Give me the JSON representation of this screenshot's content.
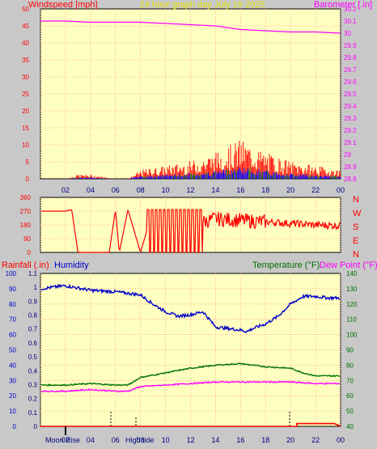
{
  "title": "24 hour graph day   July 19 2025",
  "panel1": {
    "left_label": "Windspeed [mph]",
    "right_label": "Barometer [.in]",
    "left_ticks": [
      "50",
      "45",
      "40",
      "35",
      "30",
      "25",
      "20",
      "15",
      "10",
      "5",
      "0"
    ],
    "right_ticks": [
      "30.2",
      "30.1",
      "30",
      "29.9",
      "29.8",
      "29.7",
      "29.6",
      "29.5",
      "29.4",
      "29.3",
      "29.2",
      "29.1",
      "29",
      "28.9",
      "28.8"
    ]
  },
  "panel2": {
    "left_ticks": [
      "360",
      "270",
      "180",
      "90",
      "0"
    ],
    "compass": [
      "N",
      "W",
      "S",
      "E",
      "N"
    ]
  },
  "panel3": {
    "left_label_rain": "Rainfall (.in)",
    "left_label_hum": "Humidity",
    "right_label_temp": "Temperature (°F)",
    "right_label_dew": "Dew Point (°F)",
    "rain_ticks": [
      "1.1",
      "1",
      "0.9",
      "0.8",
      "0.7",
      "0.6",
      "0.5",
      "0.4",
      "0.3",
      "0.2",
      "0.1",
      "0"
    ],
    "hum_ticks": [
      "100",
      "90",
      "80",
      "70",
      "60",
      "50",
      "40",
      "30",
      "20",
      "10",
      "0"
    ],
    "temp_ticks": [
      "140",
      "130",
      "120",
      "110",
      "100",
      "90",
      "80",
      "70",
      "60",
      "50",
      "40"
    ],
    "moon_rise": "Moon Rise",
    "high_tide": "High tide"
  },
  "x_ticks": [
    "02",
    "04",
    "06",
    "08",
    "10",
    "12",
    "14",
    "16",
    "18",
    "20",
    "22",
    "00"
  ],
  "colors": {
    "windspeed": "#ff0000",
    "gust": "#ff0000",
    "avg_wind": "#0000ff",
    "wind_green": "#008000",
    "barometer": "#ff00ff",
    "direction": "#ff0000",
    "humidity": "#0000cc",
    "temperature": "#007000",
    "dewpoint": "#ff00ff",
    "rain": "#ff0000",
    "plot_bg": "#ffffc0",
    "grid": "#ff9999"
  },
  "chart_data": [
    {
      "type": "line",
      "title": "24 hour graph day   July 19 2025",
      "ylabel": "Windspeed [mph]",
      "y2label": "Barometer [.in]",
      "ylim": [
        0,
        50
      ],
      "y2lim": [
        28.8,
        30.2
      ],
      "x_hours": [
        0,
        2,
        4,
        6,
        8,
        10,
        12,
        14,
        16,
        18,
        20,
        22,
        24
      ],
      "series": [
        {
          "name": "Barometer",
          "hours": [
            0,
            2,
            4,
            6,
            8,
            10,
            12,
            14,
            16,
            18,
            20,
            22,
            24
          ],
          "values": [
            30.1,
            30.1,
            30.09,
            30.09,
            30.09,
            30.08,
            30.07,
            30.06,
            30.03,
            30.02,
            30.01,
            30.01,
            30.0
          ]
        },
        {
          "name": "Windspeed",
          "hours": [
            0,
            2,
            3,
            4,
            6,
            7,
            8,
            10,
            12,
            14,
            16,
            18,
            20,
            22,
            24
          ],
          "values": [
            0,
            0,
            1,
            1,
            0,
            0,
            2,
            3,
            4,
            6,
            9,
            6,
            4,
            3,
            2
          ]
        }
      ]
    },
    {
      "type": "line",
      "ylabel": "direction",
      "ylim": [
        0,
        360
      ],
      "series": [
        {
          "name": "Direction",
          "hours": [
            0,
            2,
            2.5,
            3,
            5.5,
            6,
            6.3,
            7,
            8,
            9,
            10,
            12,
            13,
            14,
            16,
            18,
            20,
            22,
            24
          ],
          "values": [
            270,
            270,
            280,
            0,
            0,
            280,
            0,
            280,
            0,
            280,
            280,
            200,
            200,
            220,
            210,
            200,
            190,
            180,
            175
          ]
        }
      ]
    },
    {
      "type": "line",
      "y1label": "Rainfall (.in)",
      "y2label": "Humidity",
      "y3label": "Temperature (°F)",
      "y4label": "Dew Point (°F)",
      "rain_lim": [
        0,
        1.1
      ],
      "hum_lim": [
        0,
        100
      ],
      "temp_lim": [
        40,
        140
      ],
      "series": [
        {
          "name": "Humidity",
          "hours": [
            0,
            1,
            2,
            4,
            6,
            8,
            9,
            10,
            11,
            12,
            13,
            13.5,
            14,
            15,
            16,
            16.5,
            17,
            18,
            19,
            20,
            21,
            22,
            23,
            24
          ],
          "values": [
            90,
            91,
            92,
            89,
            88,
            86,
            80,
            75,
            72,
            73,
            75,
            70,
            65,
            64,
            63,
            62,
            64,
            67,
            72,
            80,
            85,
            85,
            84,
            84
          ]
        },
        {
          "name": "Temperature",
          "hours": [
            0,
            2,
            4,
            6,
            7,
            8,
            10,
            12,
            14,
            16,
            18,
            20,
            21,
            22,
            24
          ],
          "values": [
            67,
            67,
            68,
            67,
            67,
            72,
            75,
            78,
            80,
            81,
            79,
            78,
            75,
            73,
            73
          ]
        },
        {
          "name": "Dew Point",
          "hours": [
            0,
            2,
            4,
            6,
            7,
            8,
            10,
            12,
            14,
            16,
            18,
            20,
            22,
            24
          ],
          "values": [
            63,
            63,
            64,
            63,
            63,
            66,
            67,
            68,
            69,
            69,
            69,
            69,
            68,
            68
          ]
        },
        {
          "name": "Rainfall",
          "hours": [
            0,
            20.5,
            20.5,
            23.5,
            24
          ],
          "values": [
            0,
            0,
            0.02,
            0.02,
            0
          ]
        }
      ]
    }
  ]
}
